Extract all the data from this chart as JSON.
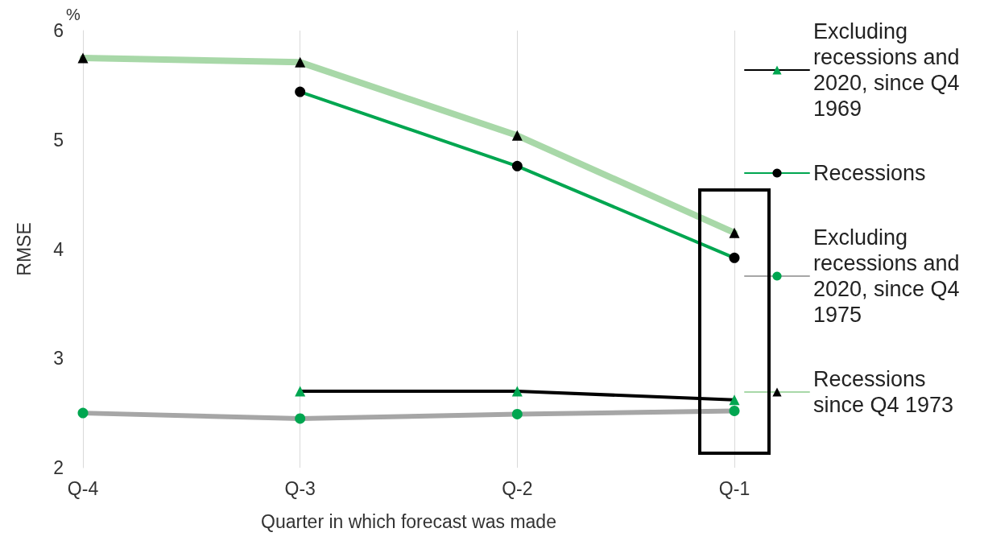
{
  "chart_data": {
    "type": "line",
    "xlabel": "Quarter in which forecast was made",
    "ylabel": "RMSE",
    "annotations": [
      "%"
    ],
    "categories": [
      "Q-4",
      "Q-3",
      "Q-2",
      "Q-1"
    ],
    "series": [
      {
        "name": "Excluding recessions and 2020, since Q4 1969",
        "color": "#000000",
        "colors": [
          "#00a650",
          "#00a650",
          "#00a650",
          "#00a650"
        ],
        "marker": "triangle",
        "values": [
          null,
          2.7,
          2.7,
          2.62
        ]
      },
      {
        "name": "Recessions",
        "color": "#00a650",
        "colors": [
          "#000000",
          "#000000",
          "#000000",
          "#000000"
        ],
        "marker": "circle",
        "values": [
          null,
          5.44,
          4.76,
          3.92
        ]
      },
      {
        "name": "Excluding recessions and 2020, since Q4 1975",
        "color": "#a6a6a6",
        "colors": [
          "#00a650",
          "#00a650",
          "#00a650",
          "#00a650"
        ],
        "marker": "circle",
        "values": [
          2.5,
          2.45,
          2.49,
          2.52
        ]
      },
      {
        "name": "Recessions since Q4 1973",
        "color": "#a8d8a8",
        "colors": [
          "#000000",
          "#000000",
          "#000000",
          "#000000"
        ],
        "marker": "triangle",
        "values": [
          5.75,
          5.71,
          5.04,
          4.15
        ]
      }
    ],
    "ylim": [
      2,
      6
    ],
    "yticks": [
      2,
      3,
      4,
      5,
      6
    ],
    "grid": "x",
    "legend": "right"
  }
}
